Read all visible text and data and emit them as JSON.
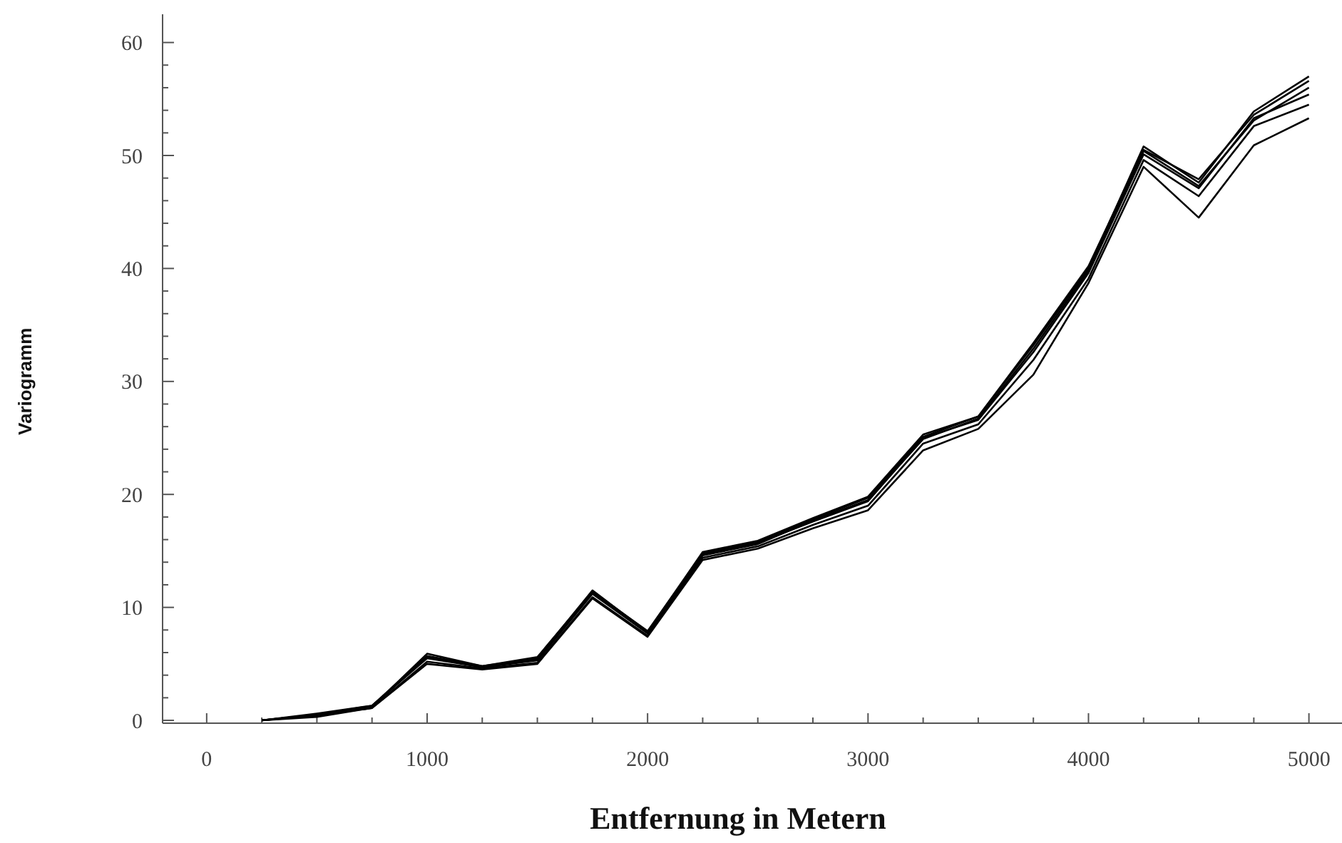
{
  "chart_data": {
    "type": "line",
    "xlabel": "Entfernung in Metern",
    "ylabel": "Variogramm",
    "x": [
      250,
      500,
      750,
      1000,
      1250,
      1500,
      1750,
      2000,
      2250,
      2500,
      2750,
      3000,
      3250,
      3500,
      3750,
      4000,
      4250,
      4500,
      4750,
      5000
    ],
    "series": [
      {
        "color": "#000000",
        "values": [
          0,
          0.6,
          1.3,
          5.5,
          4.7,
          5.3,
          11.2,
          7.7,
          14.7,
          15.7,
          17.6,
          19.4,
          25,
          26.6,
          32.6,
          39.6,
          50.1,
          47.1,
          53.3,
          55.4
        ]
      },
      {
        "color": "#000000",
        "values": [
          0,
          0.5,
          1.2,
          5.9,
          4.8,
          5.5,
          11.5,
          7.8,
          14.9,
          15.9,
          17.9,
          19.8,
          25.3,
          26.9,
          33.2,
          40,
          50.8,
          47.6,
          53.9,
          57
        ]
      },
      {
        "color": "#000000",
        "values": [
          0,
          0.4,
          1.1,
          5.2,
          4.6,
          5.1,
          10.9,
          7.5,
          14.4,
          15.4,
          17.3,
          19,
          24.5,
          26.2,
          31.9,
          39.1,
          49.6,
          46.4,
          52.6,
          54.5
        ]
      },
      {
        "color": "#000000",
        "values": [
          0,
          0.5,
          1.2,
          5.6,
          4.7,
          5.4,
          11.3,
          7.7,
          14.6,
          15.6,
          17.7,
          19.5,
          24.9,
          26.7,
          32.9,
          39.8,
          50.4,
          47.3,
          53.1,
          56
        ]
      },
      {
        "color": "#000000",
        "values": [
          0,
          0.3,
          1.1,
          5,
          4.5,
          5,
          10.8,
          7.4,
          14.2,
          15.2,
          17,
          18.6,
          23.9,
          25.8,
          30.6,
          38.7,
          49,
          44.5,
          50.9,
          53.3
        ]
      },
      {
        "color": "#000000",
        "values": [
          0,
          0.5,
          1.3,
          5.7,
          4.8,
          5.6,
          11.4,
          7.9,
          14.8,
          15.8,
          17.8,
          19.7,
          25.1,
          26.9,
          33.4,
          40.2,
          50.5,
          47.9,
          53.6,
          56.6
        ]
      }
    ],
    "xlim": [
      -200,
      5150
    ],
    "ylim": [
      -0.25,
      62.5
    ],
    "xticks": [
      0,
      {
        "value": 250,
        "label": null
      },
      {
        "value": 500,
        "label": null
      },
      {
        "value": 750,
        "label": null
      },
      1000,
      {
        "value": 1250,
        "label": null
      },
      {
        "value": 1500,
        "label": null
      },
      {
        "value": 1750,
        "label": null
      },
      2000,
      {
        "value": 2250,
        "label": null
      },
      {
        "value": 2500,
        "label": null
      },
      {
        "value": 2750,
        "label": null
      },
      3000,
      {
        "value": 3250,
        "label": null
      },
      {
        "value": 3500,
        "label": null
      },
      {
        "value": 3750,
        "label": null
      },
      4000,
      {
        "value": 4250,
        "label": null
      },
      {
        "value": 4500,
        "label": null
      },
      {
        "value": 4750,
        "label": null
      },
      5000
    ],
    "yticks": [
      0,
      {
        "value": 2,
        "label": null
      },
      {
        "value": 4,
        "label": null
      },
      {
        "value": 6,
        "label": null
      },
      {
        "value": 8,
        "label": null
      },
      10,
      {
        "value": 12,
        "label": null
      },
      {
        "value": 14,
        "label": null
      },
      {
        "value": 16,
        "label": null
      },
      {
        "value": 18,
        "label": null
      },
      20,
      {
        "value": 22,
        "label": null
      },
      {
        "value": 24,
        "label": null
      },
      {
        "value": 26,
        "label": null
      },
      {
        "value": 28,
        "label": null
      },
      30,
      {
        "value": 32,
        "label": null
      },
      {
        "value": 34,
        "label": null
      },
      {
        "value": 36,
        "label": null
      },
      {
        "value": 38,
        "label": null
      },
      40,
      {
        "value": 42,
        "label": null
      },
      {
        "value": 44,
        "label": null
      },
      {
        "value": 46,
        "label": null
      },
      {
        "value": 48,
        "label": null
      },
      50,
      {
        "value": 52,
        "label": null
      },
      {
        "value": 54,
        "label": null
      },
      {
        "value": 56,
        "label": null
      },
      {
        "value": 58,
        "label": null
      },
      60
    ],
    "grid": false,
    "marker": "none",
    "line_style": "solid"
  }
}
